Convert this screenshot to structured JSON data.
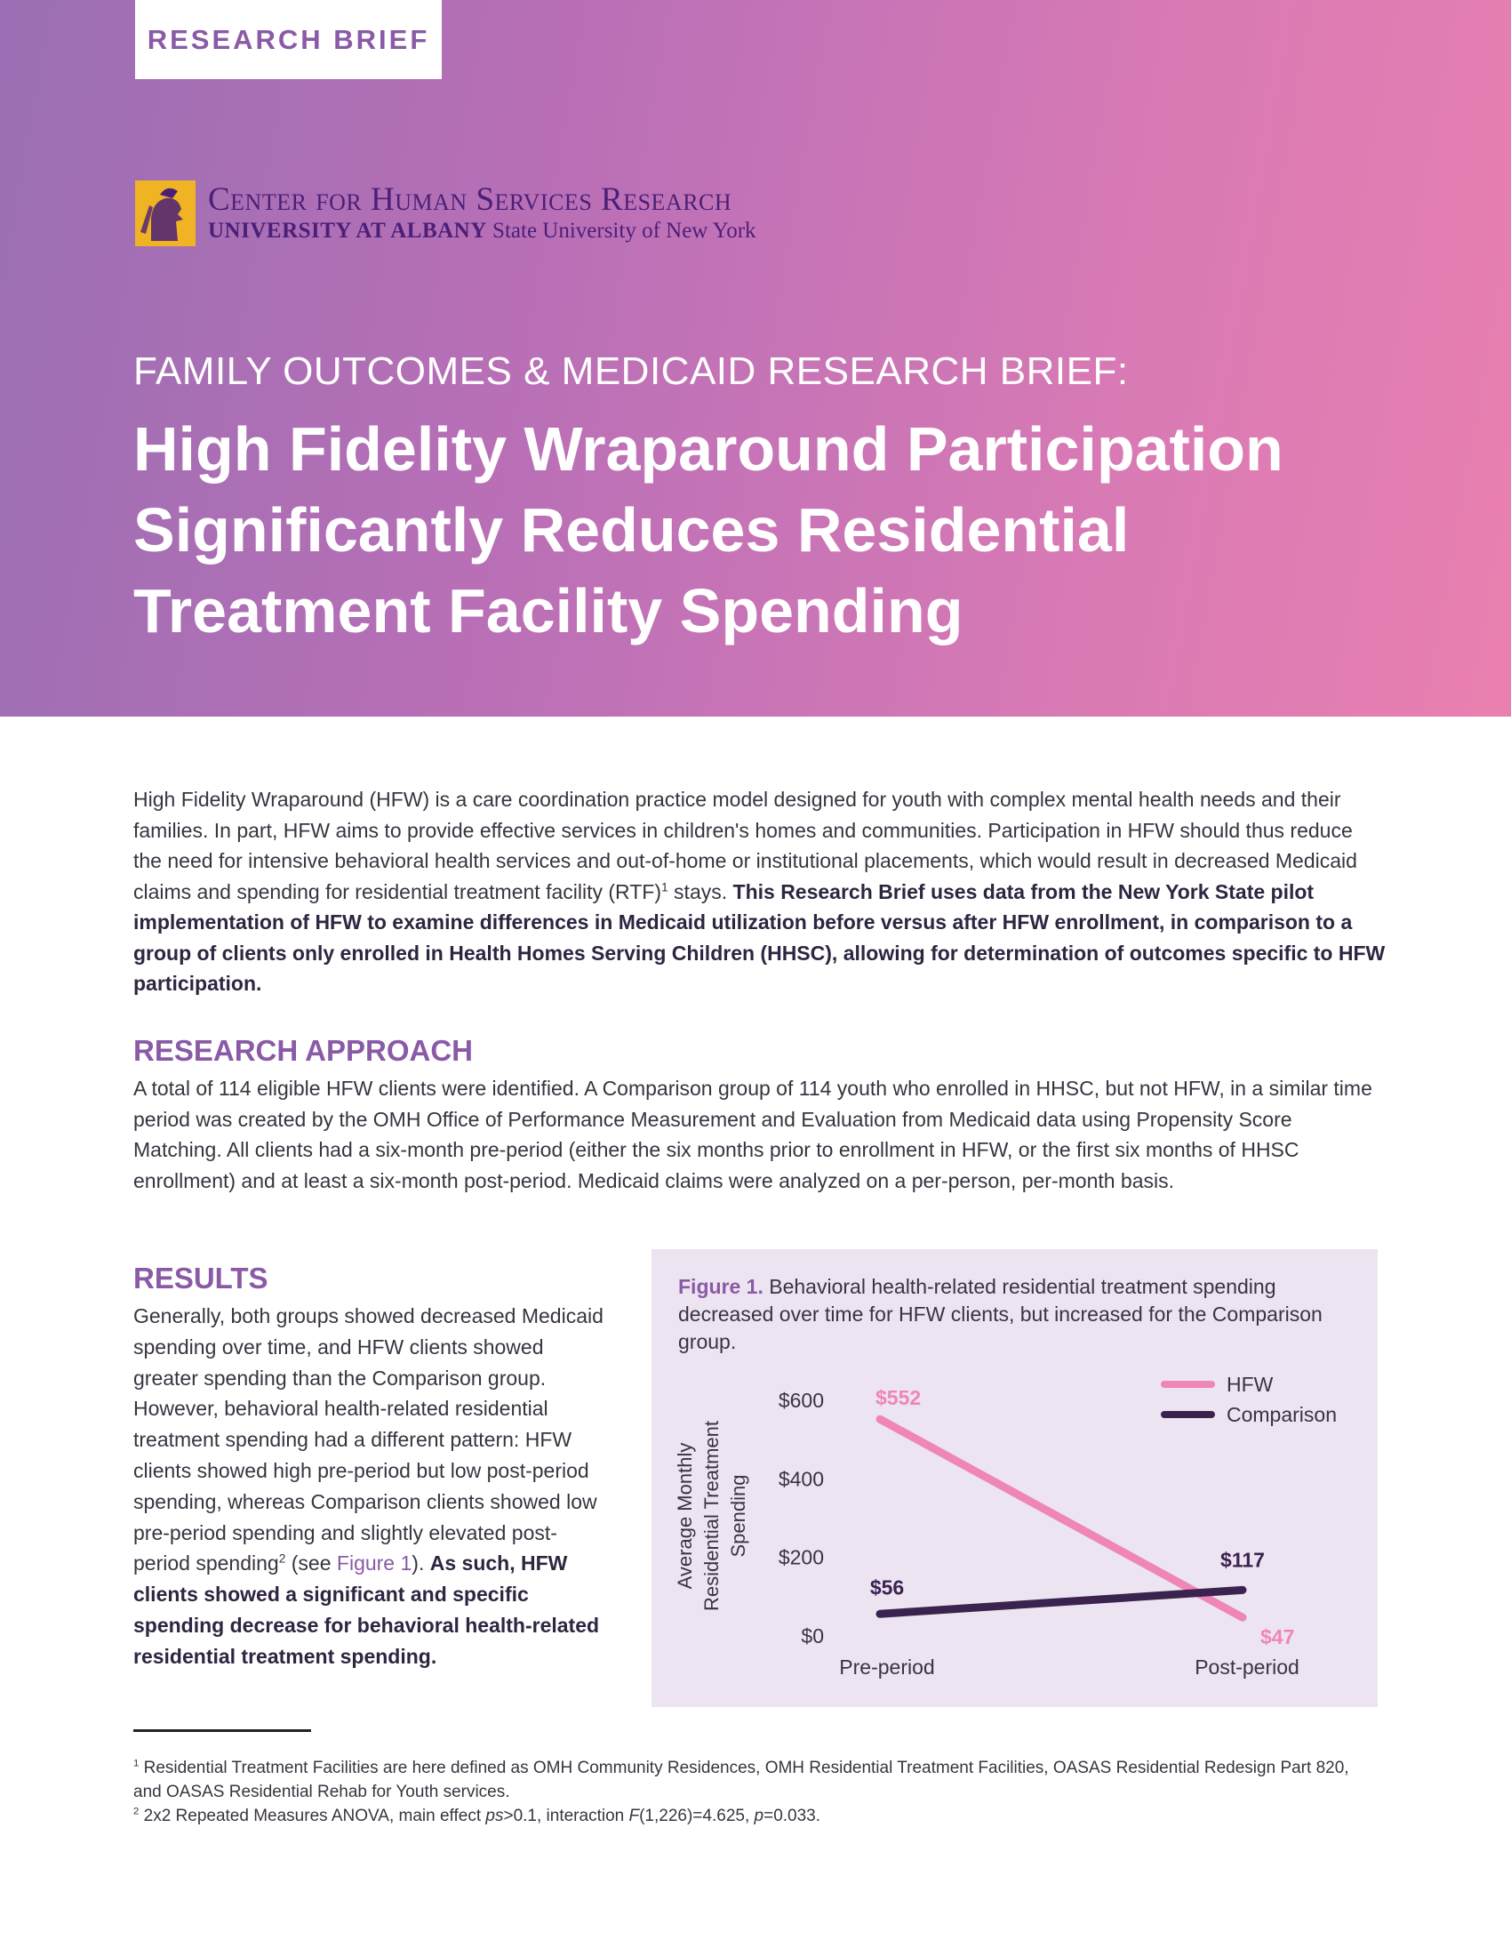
{
  "header": {
    "tag": "RESEARCH BRIEF",
    "logo": {
      "line1": "Center for Human Services Research",
      "line2_university": "UNIVERSITY AT ALBANY",
      "line2_suny": "State University of New York"
    },
    "kicker": "FAMILY OUTCOMES & MEDICAID RESEARCH BRIEF:",
    "title": "High Fidelity Wraparound Participation Significantly Reduces Residential Treatment Facility Spending"
  },
  "intro": {
    "text_a": "High Fidelity Wraparound (HFW) is a care coordination practice model designed for youth with complex mental health needs and their families. In part, HFW aims to provide effective services in children's homes and communities. Participation in HFW should thus reduce the need for intensive behavioral health services and out-of-home or institutional placements, which would result in decreased Medicaid claims and spending for residential treatment facility (RTF)",
    "sup_a": "1",
    "text_b": " stays. ",
    "bold": "This Research Brief uses data from the New York State pilot implementation of HFW to examine differences in Medicaid utilization before versus after HFW enrollment, in comparison to a group of clients only enrolled in Health Homes Serving Children (HHSC), allowing for determination of outcomes specific to HFW participation."
  },
  "approach": {
    "heading": "RESEARCH APPROACH",
    "text": "A total of 114 eligible HFW clients were identified. A Comparison group of 114 youth who enrolled in HHSC, but not HFW, in a similar time period was created by the OMH Office of Performance Measurement and Evaluation from Medicaid data using Propensity Score Matching. All clients had a six-month pre-period (either the six months prior to enrollment in HFW, or the first six months of HHSC enrollment) and at least a six-month post-period. Medicaid claims were analyzed on a per-person, per-month basis."
  },
  "results": {
    "heading": "RESULTS",
    "text_a": "Generally, both groups showed decreased Medicaid spending over time, and HFW clients showed greater spending than the Comparison group. However, behavioral health-related residential treatment spending had a different pattern: HFW clients showed high pre-period but low post-period spending, whereas Comparison clients showed low pre-period spending and slightly elevated post-period spending",
    "sup": "2",
    "text_b": " (see ",
    "link": "Figure 1",
    "text_c": "). ",
    "bold": "As such, HFW clients showed a significant and specific spending decrease for behavioral health-related residential treatment spending."
  },
  "figure": {
    "label": "Figure 1.",
    "caption": " Behavioral health-related residential treatment spending decreased over time for HFW clients, but increased for the Comparison group."
  },
  "chart_data": {
    "type": "line",
    "categories": [
      "Pre-period",
      "Post-period"
    ],
    "series": [
      {
        "name": "HFW",
        "values": [
          552,
          47
        ],
        "labels": [
          "$552",
          "$47"
        ],
        "color": "#ee86b6"
      },
      {
        "name": "Comparison",
        "values": [
          56,
          117
        ],
        "labels": [
          "$56",
          "$117"
        ],
        "color": "#3b2350"
      }
    ],
    "ylabel_lines": [
      "Average Monthly",
      "Residential Treatment",
      "Spending"
    ],
    "ylim": [
      0,
      600
    ],
    "yticks": [
      0,
      200,
      400,
      600
    ],
    "ytick_labels": [
      "$0",
      "$200",
      "$400",
      "$600"
    ],
    "grid": false,
    "legend": "top-right"
  },
  "footnotes": [
    {
      "mark": "1",
      "text": " Residential Treatment Facilities are here defined as OMH Community Residences, OMH Residential Treatment Facilities, OASAS Residential Redesign Part 820, and OASAS Residential Rehab for Youth services."
    },
    {
      "mark": "2",
      "text_a": " 2x2 Repeated Measures ANOVA, main effect ",
      "ps": "ps",
      "text_b": ">0.1, interaction ",
      "F": "F",
      "text_c": "(1,226)=4.625, ",
      "p": "p",
      "text_d": "=0.033."
    }
  ],
  "colors": {
    "accent": "#8a5aa6",
    "hfw": "#ee86b6",
    "comparison": "#3b2350",
    "figure_bg": "#ede4f1"
  }
}
